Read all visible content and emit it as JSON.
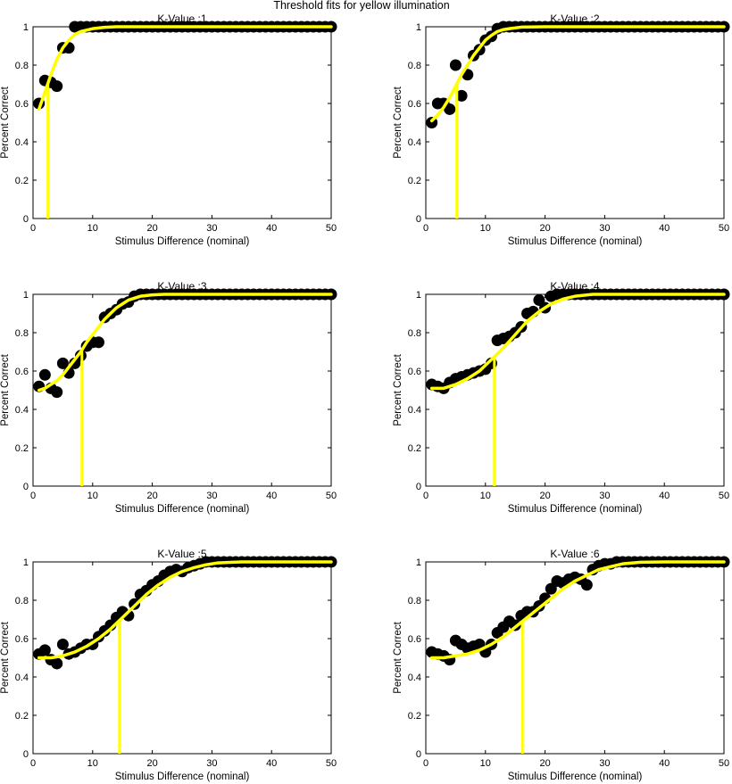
{
  "figure_title": "Threshold fits for yellow illumination",
  "colors": {
    "marker": "#000000",
    "fit_curve": "#ffff00",
    "threshold_line": "#ffff00",
    "axes": "#000000",
    "background": "#ffffff"
  },
  "chart_data": [
    {
      "type": "scatter",
      "title": "K-Value :1",
      "xlabel": "Stimulus Difference (nominal)",
      "ylabel": "Percent Correct",
      "xlim": [
        0,
        50
      ],
      "ylim": [
        0,
        1
      ],
      "xticks": [
        0,
        10,
        20,
        30,
        40,
        50
      ],
      "yticks": [
        0,
        0.2,
        0.4,
        0.6,
        0.8,
        1
      ],
      "grid": false,
      "x": [
        1,
        2,
        3,
        4,
        5,
        6,
        7,
        8,
        9,
        10,
        11,
        12,
        13,
        14,
        15,
        16,
        17,
        18,
        19,
        20,
        21,
        22,
        23,
        24,
        25,
        26,
        27,
        28,
        29,
        30,
        31,
        32,
        33,
        34,
        35,
        36,
        37,
        38,
        39,
        40,
        41,
        42,
        43,
        44,
        45,
        46,
        47,
        48,
        49,
        50
      ],
      "y": [
        0.6,
        0.72,
        0.71,
        0.69,
        0.89,
        0.89,
        1,
        1,
        1,
        1,
        1,
        1,
        1,
        1,
        1,
        1,
        1,
        1,
        1,
        1,
        1,
        1,
        1,
        1,
        1,
        1,
        1,
        1,
        1,
        1,
        1,
        1,
        1,
        1,
        1,
        1,
        1,
        1,
        1,
        1,
        1,
        1,
        1,
        1,
        1,
        1,
        1,
        1,
        1,
        1
      ],
      "fit": {
        "threshold": 2.5,
        "x": [
          1,
          2,
          3,
          4,
          5,
          6,
          7,
          8,
          10,
          12,
          14,
          16,
          20,
          30,
          50
        ],
        "y": [
          0.57,
          0.66,
          0.75,
          0.83,
          0.89,
          0.93,
          0.96,
          0.975,
          0.99,
          0.997,
          1,
          1,
          1,
          1,
          1
        ]
      }
    },
    {
      "type": "scatter",
      "title": "K-Value :2",
      "xlabel": "Stimulus Difference (nominal)",
      "ylabel": "Percent Correct",
      "xlim": [
        0,
        50
      ],
      "ylim": [
        0,
        1
      ],
      "xticks": [
        0,
        10,
        20,
        30,
        40,
        50
      ],
      "yticks": [
        0,
        0.2,
        0.4,
        0.6,
        0.8,
        1
      ],
      "grid": false,
      "x": [
        1,
        2,
        3,
        4,
        5,
        6,
        7,
        8,
        9,
        10,
        11,
        12,
        13,
        14,
        15,
        16,
        17,
        18,
        19,
        20,
        21,
        22,
        23,
        24,
        25,
        26,
        27,
        28,
        29,
        30,
        31,
        32,
        33,
        34,
        35,
        36,
        37,
        38,
        39,
        40,
        41,
        42,
        43,
        44,
        45,
        46,
        47,
        48,
        49,
        50
      ],
      "y": [
        0.5,
        0.6,
        0.6,
        0.57,
        0.8,
        0.64,
        0.75,
        0.85,
        0.88,
        0.93,
        0.95,
        0.99,
        1,
        1,
        1,
        1,
        1,
        1,
        1,
        1,
        1,
        1,
        1,
        1,
        1,
        1,
        1,
        1,
        1,
        1,
        1,
        1,
        1,
        1,
        1,
        1,
        1,
        1,
        1,
        1,
        1,
        1,
        1,
        1,
        1,
        1,
        1,
        1,
        1,
        1
      ],
      "fit": {
        "threshold": 5.2,
        "x": [
          1,
          2,
          3,
          4,
          5,
          6,
          7,
          8,
          9,
          10,
          11,
          12,
          13,
          14,
          16,
          20,
          30,
          50
        ],
        "y": [
          0.51,
          0.54,
          0.58,
          0.63,
          0.69,
          0.75,
          0.8,
          0.85,
          0.89,
          0.93,
          0.955,
          0.975,
          0.985,
          0.99,
          0.998,
          1,
          1,
          1
        ]
      }
    },
    {
      "type": "scatter",
      "title": "K-Value :3",
      "xlabel": "Stimulus Difference (nominal)",
      "ylabel": "Percent Correct",
      "xlim": [
        0,
        50
      ],
      "ylim": [
        0,
        1
      ],
      "xticks": [
        0,
        10,
        20,
        30,
        40,
        50
      ],
      "yticks": [
        0,
        0.2,
        0.4,
        0.6,
        0.8,
        1
      ],
      "grid": false,
      "x": [
        1,
        2,
        3,
        4,
        5,
        6,
        7,
        8,
        9,
        10,
        11,
        12,
        13,
        14,
        15,
        16,
        17,
        18,
        19,
        20,
        21,
        22,
        23,
        24,
        25,
        26,
        27,
        28,
        29,
        30,
        31,
        32,
        33,
        34,
        35,
        36,
        37,
        38,
        39,
        40,
        41,
        42,
        43,
        44,
        45,
        46,
        47,
        48,
        49,
        50
      ],
      "y": [
        0.52,
        0.58,
        0.51,
        0.49,
        0.64,
        0.59,
        0.64,
        0.68,
        0.73,
        0.75,
        0.75,
        0.88,
        0.9,
        0.92,
        0.95,
        0.96,
        0.99,
        1,
        1,
        1,
        1,
        1,
        1,
        1,
        1,
        1,
        1,
        1,
        1,
        1,
        1,
        1,
        1,
        1,
        1,
        1,
        1,
        1,
        1,
        1,
        1,
        1,
        1,
        1,
        1,
        1,
        1,
        1,
        1,
        1
      ],
      "fit": {
        "threshold": 8.2,
        "x": [
          1,
          2,
          3,
          4,
          5,
          6,
          7,
          8,
          9,
          10,
          11,
          12,
          13,
          14,
          15,
          16,
          17,
          18,
          20,
          22,
          25,
          30,
          50
        ],
        "y": [
          0.5,
          0.51,
          0.53,
          0.55,
          0.58,
          0.62,
          0.66,
          0.7,
          0.75,
          0.79,
          0.83,
          0.87,
          0.9,
          0.93,
          0.95,
          0.97,
          0.98,
          0.99,
          0.997,
          1,
          1,
          1,
          1
        ]
      }
    },
    {
      "type": "scatter",
      "title": "K-Value :4",
      "xlabel": "Stimulus Difference (nominal)",
      "ylabel": "Percent Correct",
      "xlim": [
        0,
        50
      ],
      "ylim": [
        0,
        1
      ],
      "xticks": [
        0,
        10,
        20,
        30,
        40,
        50
      ],
      "yticks": [
        0,
        0.2,
        0.4,
        0.6,
        0.8,
        1
      ],
      "grid": false,
      "x": [
        1,
        2,
        3,
        4,
        5,
        6,
        7,
        8,
        9,
        10,
        11,
        12,
        13,
        14,
        15,
        16,
        17,
        18,
        19,
        20,
        21,
        22,
        23,
        24,
        25,
        26,
        27,
        28,
        29,
        30,
        31,
        32,
        33,
        34,
        35,
        36,
        37,
        38,
        39,
        40,
        41,
        42,
        43,
        44,
        45,
        46,
        47,
        48,
        49,
        50
      ],
      "y": [
        0.53,
        0.52,
        0.51,
        0.54,
        0.56,
        0.57,
        0.58,
        0.59,
        0.6,
        0.61,
        0.64,
        0.76,
        0.77,
        0.78,
        0.8,
        0.83,
        0.9,
        0.91,
        0.97,
        0.93,
        0.99,
        1,
        1,
        1,
        1,
        1,
        1,
        1,
        1,
        1,
        1,
        1,
        1,
        1,
        1,
        1,
        1,
        1,
        1,
        1,
        1,
        1,
        1,
        1,
        1,
        1,
        1,
        1,
        1,
        1
      ],
      "fit": {
        "threshold": 11.5,
        "x": [
          1,
          3,
          5,
          7,
          9,
          11,
          13,
          15,
          17,
          19,
          21,
          23,
          25,
          28,
          32,
          50
        ],
        "y": [
          0.51,
          0.51,
          0.53,
          0.56,
          0.6,
          0.66,
          0.72,
          0.79,
          0.86,
          0.91,
          0.95,
          0.975,
          0.99,
          1,
          1,
          1
        ]
      }
    },
    {
      "type": "scatter",
      "title": "K-Value :5",
      "xlabel": "Stimulus Difference (nominal)",
      "ylabel": "Percent Correct",
      "xlim": [
        0,
        50
      ],
      "ylim": [
        0,
        1
      ],
      "xticks": [
        0,
        10,
        20,
        30,
        40,
        50
      ],
      "yticks": [
        0,
        0.2,
        0.4,
        0.6,
        0.8,
        1
      ],
      "grid": false,
      "x": [
        1,
        2,
        3,
        4,
        5,
        6,
        7,
        8,
        9,
        10,
        11,
        12,
        13,
        14,
        15,
        16,
        17,
        18,
        19,
        20,
        21,
        22,
        23,
        24,
        25,
        26,
        27,
        28,
        29,
        30,
        31,
        32,
        33,
        34,
        35,
        36,
        37,
        38,
        39,
        40,
        41,
        42,
        43,
        44,
        45,
        46,
        47,
        48,
        49,
        50
      ],
      "y": [
        0.52,
        0.54,
        0.49,
        0.47,
        0.57,
        0.52,
        0.53,
        0.55,
        0.57,
        0.57,
        0.61,
        0.64,
        0.67,
        0.71,
        0.74,
        0.72,
        0.78,
        0.83,
        0.85,
        0.88,
        0.9,
        0.93,
        0.95,
        0.96,
        0.95,
        0.97,
        0.98,
        0.99,
        1,
        1,
        1,
        1,
        1,
        1,
        1,
        1,
        1,
        1,
        1,
        1,
        1,
        1,
        1,
        1,
        1,
        1,
        1,
        1,
        1,
        1
      ],
      "fit": {
        "threshold": 14.5,
        "x": [
          1,
          3,
          5,
          7,
          9,
          11,
          13,
          15,
          17,
          19,
          21,
          23,
          25,
          27,
          29,
          31,
          35,
          50
        ],
        "y": [
          0.5,
          0.5,
          0.51,
          0.53,
          0.56,
          0.6,
          0.65,
          0.71,
          0.77,
          0.83,
          0.88,
          0.92,
          0.95,
          0.97,
          0.985,
          0.995,
          1,
          1
        ]
      }
    },
    {
      "type": "scatter",
      "title": "K-Value :6",
      "xlabel": "Stimulus Difference (nominal)",
      "ylabel": "Percent Correct",
      "xlim": [
        0,
        50
      ],
      "ylim": [
        0,
        1
      ],
      "xticks": [
        0,
        10,
        20,
        30,
        40,
        50
      ],
      "yticks": [
        0,
        0.2,
        0.4,
        0.6,
        0.8,
        1
      ],
      "grid": false,
      "x": [
        1,
        2,
        3,
        4,
        5,
        6,
        7,
        8,
        9,
        10,
        11,
        12,
        13,
        14,
        15,
        16,
        17,
        18,
        19,
        20,
        21,
        22,
        23,
        24,
        25,
        26,
        27,
        28,
        29,
        30,
        31,
        32,
        33,
        34,
        35,
        36,
        37,
        38,
        39,
        40,
        41,
        42,
        43,
        44,
        45,
        46,
        47,
        48,
        49,
        50
      ],
      "y": [
        0.53,
        0.52,
        0.51,
        0.49,
        0.59,
        0.57,
        0.55,
        0.56,
        0.57,
        0.53,
        0.57,
        0.63,
        0.66,
        0.69,
        0.67,
        0.72,
        0.74,
        0.74,
        0.77,
        0.81,
        0.86,
        0.9,
        0.89,
        0.91,
        0.92,
        0.91,
        0.88,
        0.96,
        0.98,
        0.99,
        0.99,
        1,
        1,
        1,
        1,
        1,
        1,
        1,
        1,
        1,
        1,
        1,
        1,
        1,
        1,
        1,
        1,
        1,
        1,
        1
      ],
      "fit": {
        "threshold": 16.2,
        "x": [
          1,
          3,
          5,
          7,
          9,
          11,
          13,
          15,
          17,
          19,
          21,
          23,
          25,
          27,
          29,
          31,
          33,
          36,
          40,
          50
        ],
        "y": [
          0.5,
          0.5,
          0.51,
          0.52,
          0.54,
          0.57,
          0.61,
          0.66,
          0.71,
          0.76,
          0.81,
          0.86,
          0.9,
          0.93,
          0.96,
          0.975,
          0.99,
          0.998,
          1,
          1
        ]
      }
    }
  ]
}
